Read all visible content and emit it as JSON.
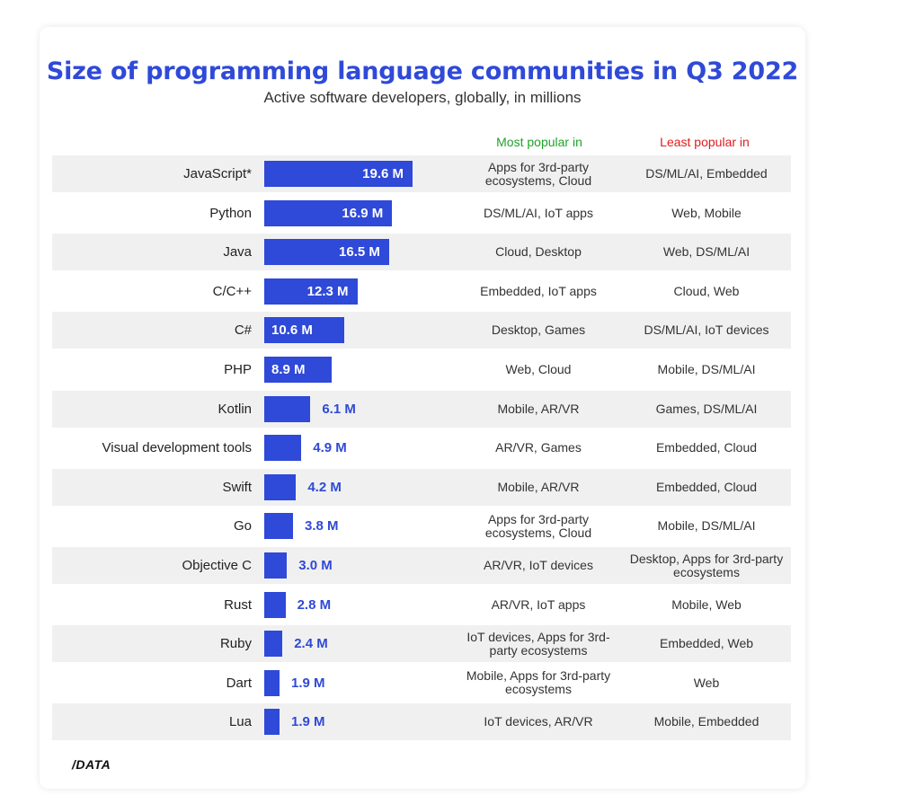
{
  "header": {
    "title": "Size of programming language communities in Q3 2022",
    "subtitle": "Active software developers, globally, in millions"
  },
  "columns": {
    "most_popular": "Most popular in",
    "least_popular": "Least popular in"
  },
  "colors": {
    "bar": "#2f49d8",
    "title": "#2f49d8",
    "most_popular_header": "#1ea329",
    "least_popular_header": "#e01c1c",
    "row_shade": "#f0f0f0"
  },
  "chart_data": {
    "type": "bar",
    "orientation": "horizontal",
    "title": "Size of programming language communities in Q3 2022",
    "subtitle": "Active software developers, globally, in millions",
    "unit": "M",
    "categories": [
      "JavaScript*",
      "Python",
      "Java",
      "C/C++",
      "C#",
      "PHP",
      "Kotlin",
      "Visual development tools",
      "Swift",
      "Go",
      "Objective C",
      "Rust",
      "Ruby",
      "Dart",
      "Lua"
    ],
    "values": [
      19.6,
      16.9,
      16.5,
      12.3,
      10.6,
      8.9,
      6.1,
      4.9,
      4.2,
      3.8,
      3.0,
      2.8,
      2.4,
      1.9,
      1.9
    ],
    "value_labels": [
      "19.6 M",
      "16.9 M",
      "16.5 M",
      "12.3 M",
      "10.6 M",
      "8.9 M",
      "6.1 M",
      "4.9 M",
      "4.2 M",
      "3.8 M",
      "3.0 M",
      "2.8 M",
      "2.4 M",
      "1.9 M",
      "1.9 M"
    ],
    "most_popular_in": [
      "Apps for 3rd-party ecosystems, Cloud",
      "DS/ML/AI, IoT apps",
      "Cloud, Desktop",
      "Embedded, IoT apps",
      "Desktop, Games",
      "Web, Cloud",
      "Mobile, AR/VR",
      "AR/VR, Games",
      "Mobile, AR/VR",
      "Apps for 3rd-party ecosystems, Cloud",
      "AR/VR, IoT devices",
      "AR/VR, IoT apps",
      "IoT devices, Apps for 3rd-party ecosystems",
      "Mobile, Apps for 3rd-party ecosystems",
      "IoT devices, AR/VR"
    ],
    "least_popular_in": [
      "DS/ML/AI, Embedded",
      "Web, Mobile",
      "Web, DS/ML/AI",
      "Cloud, Web",
      "DS/ML/AI, IoT devices",
      "Mobile, DS/ML/AI",
      "Games, DS/ML/AI",
      "Embedded, Cloud",
      "Embedded, Cloud",
      "Mobile, DS/ML/AI",
      "Desktop, Apps for 3rd-party ecosystems",
      "Mobile, Web",
      "Embedded, Web",
      "Web",
      "Mobile, Embedded"
    ],
    "xlim": [
      0,
      19.6
    ],
    "grid": false,
    "legend": "none"
  },
  "footer": {
    "logo_text": "/DATA"
  }
}
